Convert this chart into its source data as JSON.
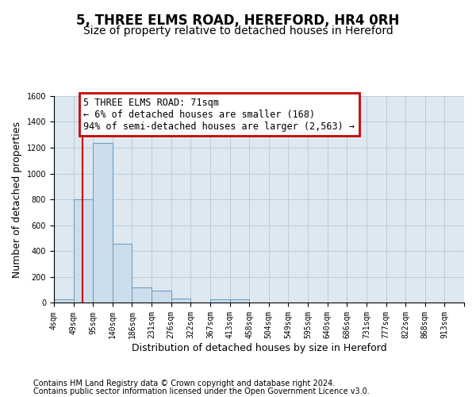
{
  "title": "5, THREE ELMS ROAD, HEREFORD, HR4 0RH",
  "subtitle": "Size of property relative to detached houses in Hereford",
  "xlabel": "Distribution of detached houses by size in Hereford",
  "ylabel": "Number of detached properties",
  "footnote1": "Contains HM Land Registry data © Crown copyright and database right 2024.",
  "footnote2": "Contains public sector information licensed under the Open Government Licence v3.0.",
  "bin_labels": [
    "4sqm",
    "49sqm",
    "95sqm",
    "140sqm",
    "186sqm",
    "231sqm",
    "276sqm",
    "322sqm",
    "367sqm",
    "413sqm",
    "458sqm",
    "504sqm",
    "549sqm",
    "595sqm",
    "640sqm",
    "686sqm",
    "731sqm",
    "777sqm",
    "822sqm",
    "868sqm",
    "913sqm"
  ],
  "bar_heights": [
    25,
    800,
    1240,
    460,
    120,
    95,
    35,
    0,
    25,
    25,
    0,
    0,
    0,
    0,
    0,
    0,
    0,
    0,
    0,
    0,
    0
  ],
  "bar_color": "#ccdded",
  "bar_edge_color": "#6699bb",
  "grid_color": "#bbccdd",
  "background_color": "#dde8f0",
  "vline_color": "#cc0000",
  "ylim": [
    0,
    1600
  ],
  "yticks": [
    0,
    200,
    400,
    600,
    800,
    1000,
    1200,
    1400,
    1600
  ],
  "annotation_text": "5 THREE ELMS ROAD: 71sqm\n← 6% of detached houses are smaller (168)\n94% of semi-detached houses are larger (2,563) →",
  "annotation_box_color": "#cc0000",
  "title_fontsize": 12,
  "subtitle_fontsize": 10,
  "axis_label_fontsize": 9,
  "tick_fontsize": 7,
  "annotation_fontsize": 8.5,
  "footnote_fontsize": 7
}
